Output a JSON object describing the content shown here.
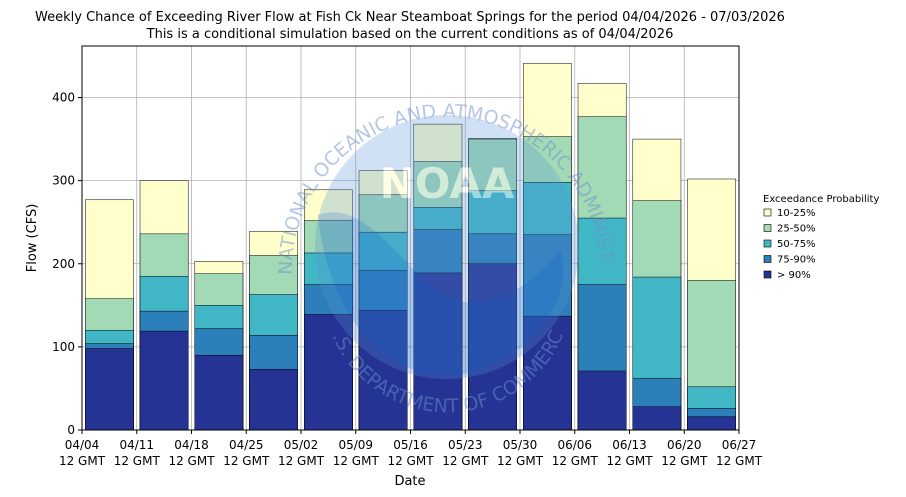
{
  "chart_data": {
    "type": "bar",
    "title": "Weekly Chance of Exceeding River Flow at Fish Ck Near Steamboat Springs for the period 04/04/2026 - 07/03/2026",
    "subtitle": "This is a conditional simulation based on the current conditions as of 04/04/2026",
    "xlabel": "Date",
    "ylabel": "Flow (CFS)",
    "ylim": [
      0,
      462
    ],
    "yticks": [
      0,
      100,
      200,
      300,
      400
    ],
    "grid": true,
    "x_ticks": [
      {
        "date": "04/04",
        "time": "12 GMT"
      },
      {
        "date": "04/11",
        "time": "12 GMT"
      },
      {
        "date": "04/18",
        "time": "12 GMT"
      },
      {
        "date": "04/25",
        "time": "12 GMT"
      },
      {
        "date": "05/02",
        "time": "12 GMT"
      },
      {
        "date": "05/09",
        "time": "12 GMT"
      },
      {
        "date": "05/16",
        "time": "12 GMT"
      },
      {
        "date": "05/23",
        "time": "12 GMT"
      },
      {
        "date": "05/30",
        "time": "12 GMT"
      },
      {
        "date": "06/06",
        "time": "12 GMT"
      },
      {
        "date": "06/13",
        "time": "12 GMT"
      },
      {
        "date": "06/20",
        "time": "12 GMT"
      },
      {
        "date": "06/27",
        "time": "12 GMT"
      }
    ],
    "legend_title": "Exceedance Probability",
    "legend_position": "outside-right",
    "series": [
      {
        "name": "10-25%",
        "color": "#ffffcc",
        "values": [
          277,
          300,
          203,
          239,
          289,
          312,
          368,
          351,
          441,
          417,
          350,
          302
        ]
      },
      {
        "name": "25-50%",
        "color": "#a1dab4",
        "values": [
          158,
          236,
          188,
          210,
          252,
          283,
          323,
          350,
          353,
          377,
          276,
          180
        ]
      },
      {
        "name": "50-75%",
        "color": "#41b6c4",
        "values": [
          120,
          185,
          150,
          163,
          213,
          238,
          268,
          288,
          298,
          255,
          184,
          52
        ]
      },
      {
        "name": "75-90%",
        "color": "#2c7fb8",
        "values": [
          104,
          143,
          122,
          114,
          175,
          192,
          241,
          236,
          235,
          175,
          62,
          26
        ]
      },
      {
        "name": "> 90%",
        "color": "#253494",
        "values": [
          98,
          119,
          90,
          73,
          139,
          144,
          189,
          200,
          137,
          71,
          28,
          16
        ]
      }
    ]
  },
  "watermark": {
    "arc_text": "NATIONAL OCEANIC AND ATMOSPHERIC ADMINISTRATION",
    "logo_text": "NOAA",
    "bottom_text": "U.S. DEPARTMENT OF COMMERCE"
  }
}
